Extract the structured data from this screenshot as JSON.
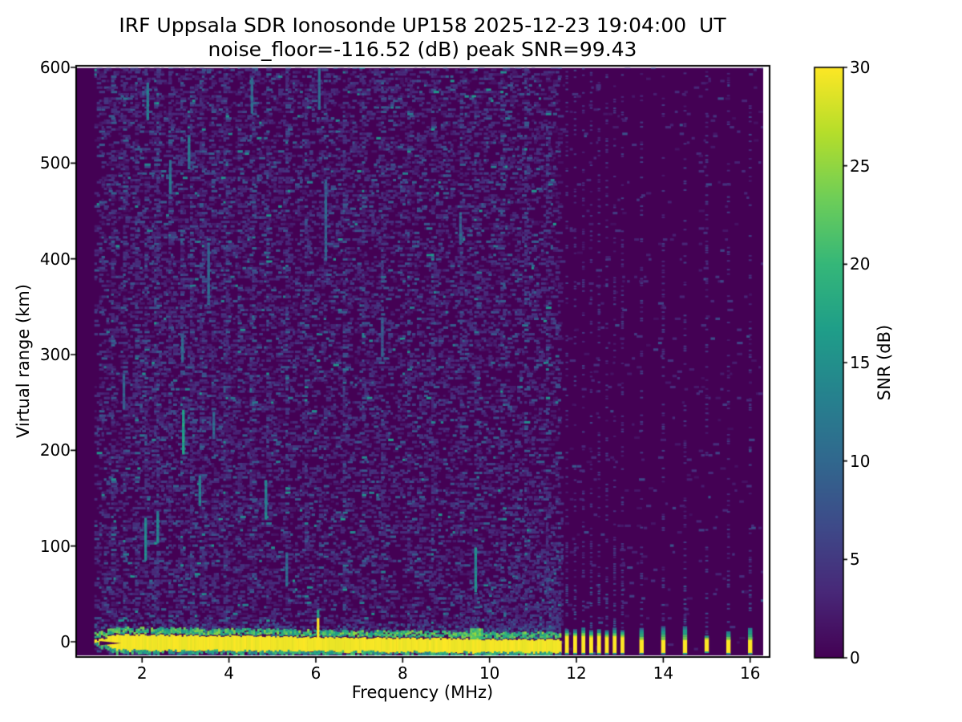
{
  "chart_data": {
    "type": "heatmap",
    "title": "IRF Uppsala SDR Ionosonde UP158 2025-12-23 19:04:00  UT",
    "subtitle": "noise_floor=-116.52 (dB) peak SNR=99.43",
    "xlabel": "Frequency (MHz)",
    "ylabel": "Virtual range (km)",
    "xlim": [
      0.5,
      16.46
    ],
    "ylim": [
      -14,
      602
    ],
    "xticks": [
      2,
      4,
      6,
      8,
      10,
      12,
      14,
      16
    ],
    "yticks": [
      0,
      100,
      200,
      300,
      400,
      500,
      600
    ],
    "grid": false,
    "colormap": "viridis",
    "colormap_stops": [
      "#440154",
      "#482878",
      "#3e4a89",
      "#31688e",
      "#26828e",
      "#1f9e89",
      "#35b779",
      "#6ece58",
      "#b5de2b",
      "#fde725"
    ],
    "colorbar": {
      "label": "SNR (dB)",
      "vmin": 0,
      "vmax": 30,
      "ticks": [
        0,
        5,
        10,
        15,
        20,
        25,
        30
      ],
      "position": "right"
    },
    "data_extent": {
      "f_min": 0.9,
      "f_max": 16.3,
      "r_min": -14,
      "r_max": 600
    },
    "ground_echo_band": {
      "f_start": 0.9,
      "f_end": 11.65,
      "r_top_at_1mhz": 7.5,
      "r_top_slope_per_mhz": -0.55,
      "r_bottom_at_1mhz": -9.5,
      "r_bottom_slope_per_mhz": -0.28,
      "taper_end_f": 1.4,
      "notch_f_range": [
        1.02,
        1.48
      ],
      "spike": {
        "f": 6.05,
        "r_top_yellow": 25,
        "r_top_teal": 34
      },
      "bump": {
        "f_range": [
          9.55,
          9.82
        ],
        "r_top": 12
      },
      "snr_db": 30
    },
    "discrete_echo_stripes": [
      {
        "f": 11.78,
        "width_mhz": 0.09,
        "r_bottom": -12.5,
        "r_top_yellow": 6,
        "cap_top": 13
      },
      {
        "f": 11.97,
        "width_mhz": 0.09,
        "r_bottom": -12.5,
        "r_top_yellow": 6,
        "cap_top": 12
      },
      {
        "f": 12.16,
        "width_mhz": 0.09,
        "r_bottom": -12.5,
        "r_top_yellow": 6,
        "cap_top": 14
      },
      {
        "f": 12.34,
        "width_mhz": 0.09,
        "r_bottom": -12.5,
        "r_top_yellow": 5,
        "cap_top": 12
      },
      {
        "f": 12.52,
        "width_mhz": 0.09,
        "r_bottom": -12.5,
        "r_top_yellow": 6,
        "cap_top": 13
      },
      {
        "f": 12.7,
        "width_mhz": 0.09,
        "r_bottom": -12.5,
        "r_top_yellow": 5,
        "cap_top": 12
      },
      {
        "f": 12.88,
        "width_mhz": 0.09,
        "r_bottom": -12.5,
        "r_top_yellow": 6,
        "cap_top": 14
      },
      {
        "f": 13.06,
        "width_mhz": 0.09,
        "r_bottom": -12.5,
        "r_top_yellow": 5,
        "cap_top": 12
      },
      {
        "f": 13.5,
        "width_mhz": 0.1,
        "r_bottom": -12.5,
        "r_top_yellow": 2,
        "cap_top": 13
      },
      {
        "f": 14.0,
        "width_mhz": 0.1,
        "r_bottom": -12.5,
        "r_top_yellow": 2,
        "cap_top": 15
      },
      {
        "f": 14.5,
        "width_mhz": 0.1,
        "r_bottom": -12.5,
        "r_top_yellow": 2,
        "cap_top": 16
      },
      {
        "f": 15.0,
        "width_mhz": 0.1,
        "r_bottom": -11.0,
        "r_top_yellow": 3,
        "cap_top": 6
      },
      {
        "f": 15.5,
        "width_mhz": 0.1,
        "r_bottom": -12.5,
        "r_top_yellow": 2,
        "cap_top": 11
      },
      {
        "f": 16.0,
        "width_mhz": 0.1,
        "r_bottom": -12.5,
        "r_top_yellow": 2,
        "cap_top": 14
      }
    ],
    "rfi_columns_mhz": [
      1.3,
      1.55,
      1.85,
      2.05,
      2.3,
      2.6,
      2.9,
      3.1,
      3.35,
      3.6,
      3.9,
      4.2,
      4.5,
      4.85,
      5.3,
      5.75,
      6.2,
      6.6,
      7.05,
      7.5,
      8.1,
      8.65,
      9.3,
      9.65,
      10.25,
      10.8,
      11.3
    ],
    "bright_streaks": [
      {
        "f": 2.05,
        "r0": 85,
        "r1": 128,
        "snr": 14
      },
      {
        "f": 2.1,
        "r0": 545,
        "r1": 582,
        "snr": 12
      },
      {
        "f": 2.33,
        "r0": 103,
        "r1": 136,
        "snr": 13
      },
      {
        "f": 1.55,
        "r0": 243,
        "r1": 278,
        "snr": 9
      },
      {
        "f": 2.62,
        "r0": 468,
        "r1": 502,
        "snr": 11
      },
      {
        "f": 2.92,
        "r0": 196,
        "r1": 242,
        "snr": 17
      },
      {
        "f": 2.9,
        "r0": 292,
        "r1": 318,
        "snr": 10
      },
      {
        "f": 3.05,
        "r0": 494,
        "r1": 528,
        "snr": 11
      },
      {
        "f": 3.3,
        "r0": 142,
        "r1": 172,
        "snr": 13
      },
      {
        "f": 3.5,
        "r0": 352,
        "r1": 415,
        "snr": 9
      },
      {
        "f": 3.62,
        "r0": 212,
        "r1": 238,
        "snr": 10
      },
      {
        "f": 4.5,
        "r0": 552,
        "r1": 588,
        "snr": 10
      },
      {
        "f": 4.82,
        "r0": 128,
        "r1": 168,
        "snr": 13
      },
      {
        "f": 5.3,
        "r0": 58,
        "r1": 92,
        "snr": 10
      },
      {
        "f": 6.2,
        "r0": 398,
        "r1": 482,
        "snr": 9
      },
      {
        "f": 6.05,
        "r0": 556,
        "r1": 598,
        "snr": 10
      },
      {
        "f": 7.5,
        "r0": 298,
        "r1": 338,
        "snr": 8
      },
      {
        "f": 9.3,
        "r0": 415,
        "r1": 448,
        "snr": 9
      },
      {
        "f": 9.65,
        "r0": 52,
        "r1": 98,
        "snr": 14
      }
    ],
    "noise": {
      "seed": 42,
      "region_split_mhz": 11.62,
      "left_density_dim": 0.2,
      "left_density_mid": 0.045,
      "left_density_bright": 0.005,
      "right_density_dim": 0.015,
      "skirt_f_start": 9.0
    }
  }
}
